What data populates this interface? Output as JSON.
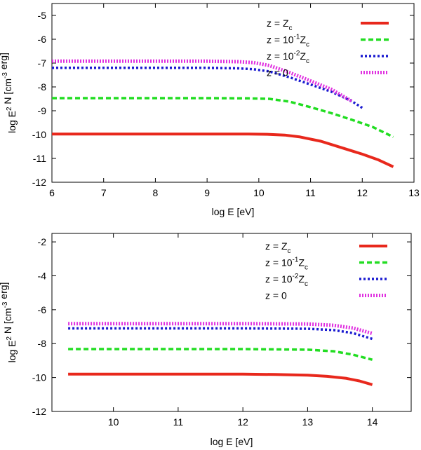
{
  "chart_data": [
    {
      "type": "line",
      "xlabel": "log E [eV]",
      "ylabel": "log E² N [cm⁻³ erg]",
      "xlim": [
        6,
        13
      ],
      "ylim": [
        -12,
        -4.5
      ],
      "xticks": [
        6,
        7,
        8,
        9,
        10,
        11,
        12,
        13
      ],
      "yticks": [
        -12,
        -11,
        -10,
        -9,
        -8,
        -7,
        -6,
        -5
      ],
      "legend_position": "top-right",
      "series": [
        {
          "name": "z = Z_c",
          "color": "#e8281c",
          "style": "solid",
          "x": [
            6.0,
            7.0,
            8.0,
            9.0,
            9.8,
            10.2,
            10.5,
            10.8,
            11.2,
            11.6,
            12.0,
            12.3,
            12.6
          ],
          "y": [
            -9.98,
            -9.98,
            -9.98,
            -9.98,
            -9.98,
            -9.99,
            -10.02,
            -10.1,
            -10.28,
            -10.55,
            -10.82,
            -11.05,
            -11.35
          ]
        },
        {
          "name": "z = 10^-1 Z_c",
          "color": "#22dd22",
          "style": "dashed",
          "x": [
            6.0,
            7.0,
            8.0,
            9.0,
            9.8,
            10.2,
            10.6,
            11.0,
            11.4,
            11.8,
            12.2,
            12.6
          ],
          "y": [
            -8.47,
            -8.47,
            -8.47,
            -8.47,
            -8.48,
            -8.5,
            -8.62,
            -8.85,
            -9.1,
            -9.38,
            -9.68,
            -10.1
          ]
        },
        {
          "name": "z = 10^-2 Z_c",
          "color": "#1a1ad0",
          "style": "dotted",
          "x": [
            6.0,
            7.0,
            8.0,
            9.0,
            9.6,
            9.9,
            10.2,
            10.6,
            11.0,
            11.4,
            11.8,
            12.0
          ],
          "y": [
            -7.2,
            -7.2,
            -7.2,
            -7.2,
            -7.22,
            -7.26,
            -7.35,
            -7.6,
            -7.9,
            -8.2,
            -8.6,
            -8.88
          ]
        },
        {
          "name": "z = 0",
          "color": "#e030e0",
          "style": "thickdotted",
          "x": [
            6.0,
            7.0,
            8.0,
            9.0,
            9.6,
            9.9,
            10.2,
            10.6,
            11.0,
            11.4,
            11.8
          ],
          "y": [
            -6.92,
            -6.92,
            -6.92,
            -6.92,
            -6.94,
            -6.98,
            -7.1,
            -7.4,
            -7.75,
            -8.1,
            -8.6
          ]
        }
      ]
    },
    {
      "type": "line",
      "xlabel": "log E [eV]",
      "ylabel": "log E² N [cm⁻³ erg]",
      "xlim": [
        9.05,
        14.6
      ],
      "ylim": [
        -12,
        -1.5
      ],
      "xticks": [
        10,
        11,
        12,
        13,
        14
      ],
      "yticks": [
        -12,
        -10,
        -8,
        -6,
        -4,
        -2
      ],
      "legend_position": "top-right",
      "series": [
        {
          "name": "z = Z_c",
          "color": "#e8281c",
          "style": "solid",
          "x": [
            9.3,
            10.0,
            11.0,
            12.0,
            12.5,
            13.0,
            13.3,
            13.6,
            13.8,
            14.0
          ],
          "y": [
            -9.8,
            -9.8,
            -9.8,
            -9.8,
            -9.82,
            -9.86,
            -9.93,
            -10.05,
            -10.2,
            -10.42
          ]
        },
        {
          "name": "z = 10^-1 Z_c",
          "color": "#22dd22",
          "style": "dashed",
          "x": [
            9.3,
            10.0,
            11.0,
            12.0,
            13.0,
            13.4,
            13.7,
            14.0
          ],
          "y": [
            -8.32,
            -8.32,
            -8.32,
            -8.32,
            -8.36,
            -8.45,
            -8.65,
            -8.95
          ]
        },
        {
          "name": "z = 10^-2 Z_c",
          "color": "#1a1ad0",
          "style": "dotted",
          "x": [
            9.3,
            10.0,
            11.0,
            12.0,
            13.0,
            13.4,
            13.7,
            14.0
          ],
          "y": [
            -7.1,
            -7.1,
            -7.1,
            -7.1,
            -7.12,
            -7.2,
            -7.38,
            -7.72
          ]
        },
        {
          "name": "z = 0",
          "color": "#e030e0",
          "style": "thickdotted",
          "x": [
            9.3,
            10.0,
            11.0,
            12.0,
            13.0,
            13.4,
            13.7,
            14.0
          ],
          "y": [
            -6.82,
            -6.82,
            -6.82,
            -6.82,
            -6.84,
            -6.92,
            -7.08,
            -7.4
          ]
        }
      ]
    }
  ]
}
